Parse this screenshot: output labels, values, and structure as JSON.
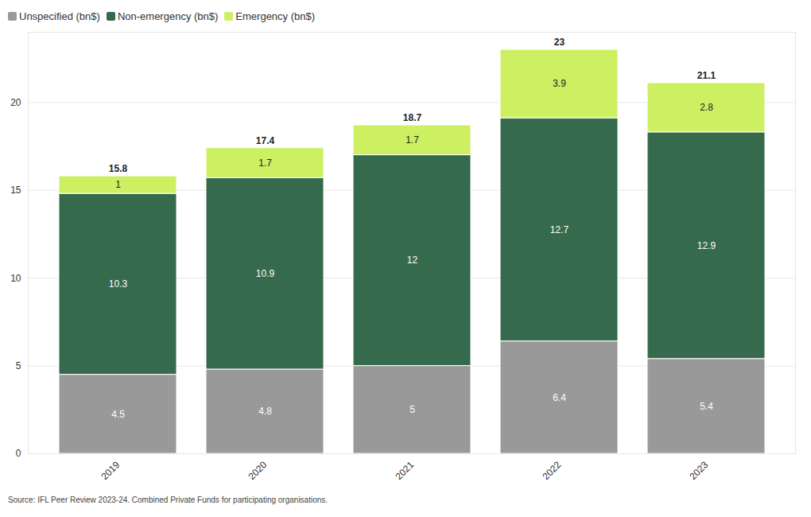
{
  "chart_data": {
    "type": "bar",
    "stacked": true,
    "data_labels": true,
    "grid": true,
    "legend": "top-left",
    "caption": "Source: IFL Peer Review 2023-24. Combined Private Funds for participating organisations.",
    "categories": [
      "2019",
      "2020",
      "2021",
      "2022",
      "2023"
    ],
    "series": [
      {
        "name": "Unspecified (bn$)",
        "color": "#999999",
        "values": [
          4.5,
          4.8,
          5,
          6.4,
          5.4
        ]
      },
      {
        "name": "Non-emergency (bn$)",
        "color": "#356b4c",
        "values": [
          10.3,
          10.9,
          12,
          12.7,
          12.9
        ]
      },
      {
        "name": "Emergency (bn$)",
        "color": "#ccf062",
        "values": [
          1,
          1.7,
          1.7,
          3.9,
          2.8
        ]
      }
    ],
    "totals": [
      15.8,
      17.4,
      18.7,
      23,
      21.1
    ],
    "ylim": [
      0,
      24
    ],
    "yticks": [
      0,
      5,
      10,
      15,
      20
    ]
  }
}
